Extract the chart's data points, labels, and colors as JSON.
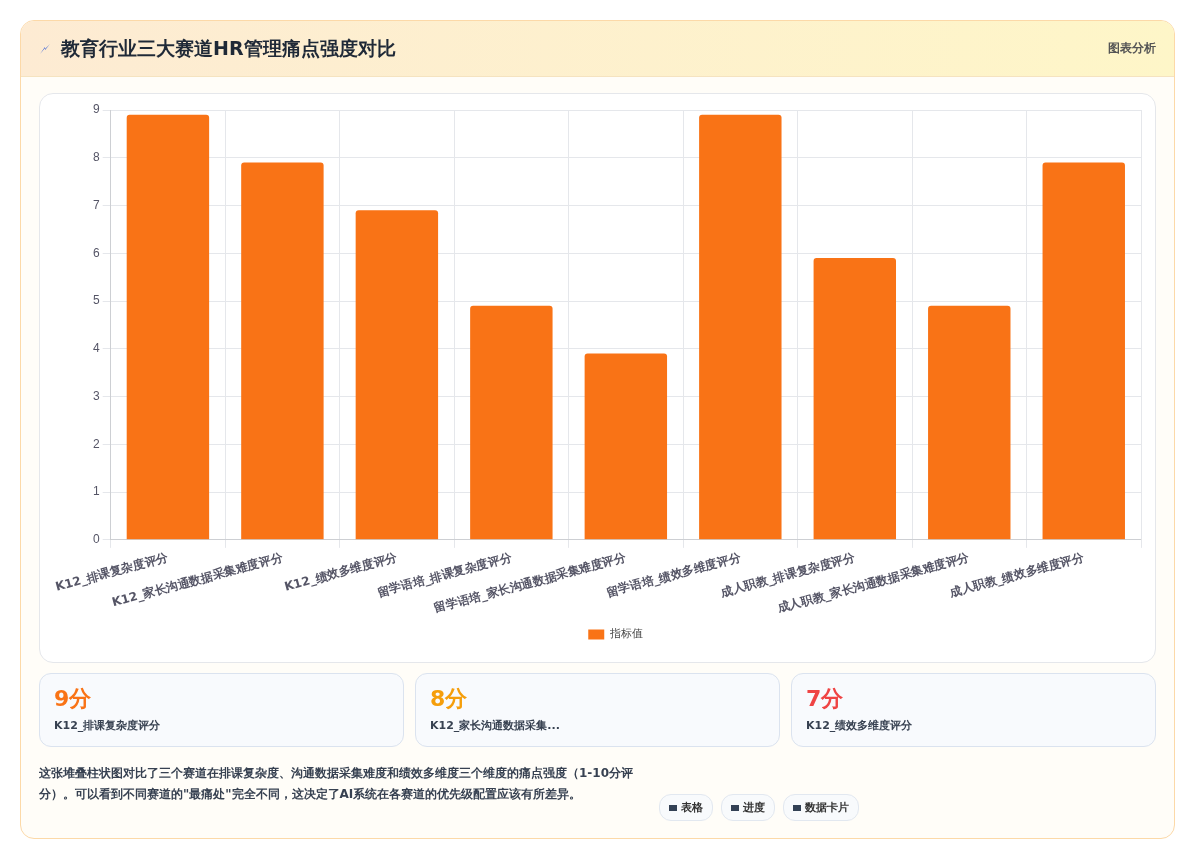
{
  "chart_data": [
    {
      "type": "bar",
      "title": "教育行业三大赛道HR管理痛点强度对比",
      "categories": [
        "K12_排课复杂度评分",
        "K12_家长沟通数据采集难度评分",
        "K12_绩效多维度评分",
        "留学语培_排课复杂度评分",
        "留学语培_家长沟通数据采集难度评分",
        "留学语培_绩效多维度评分",
        "成人职教_排课复杂度评分",
        "成人职教_家长沟通数据采集难度评分",
        "成人职教_绩效多维度评分"
      ],
      "series": [
        {
          "name": "指标值",
          "color": "#f97316",
          "values": [
            8.9,
            7.9,
            6.9,
            4.9,
            3.9,
            8.9,
            5.9,
            4.9,
            7.9
          ]
        }
      ],
      "ylim": [
        0,
        9
      ],
      "yticks": [
        0,
        1,
        2,
        3,
        4,
        5,
        6,
        7,
        8,
        9
      ],
      "grid": true,
      "legend": "bottom",
      "annotations": [
        "图表分析"
      ]
    },
    {
      "type": "other",
      "annotations": [
        "9分",
        "K12_排课复杂度评分",
        "8分",
        "K12_家长沟通数据采集...",
        "7分",
        "K12_绩效多维度评分",
        "这张堆叠柱状图对比了三个赛道在排课复杂度、沟通数据采集难度和绩效多维度三个维度的痛点强度（1-10分评分）。可以看到不同赛道的\"最痛处\"完全不同，这决定了AI系统在各赛道的优先级配置应该有所差异。",
        "表格",
        "进度",
        "数据卡片"
      ],
      "colors": [
        "#f97316",
        "#f59e0b",
        "#ef4444"
      ]
    }
  ]
}
